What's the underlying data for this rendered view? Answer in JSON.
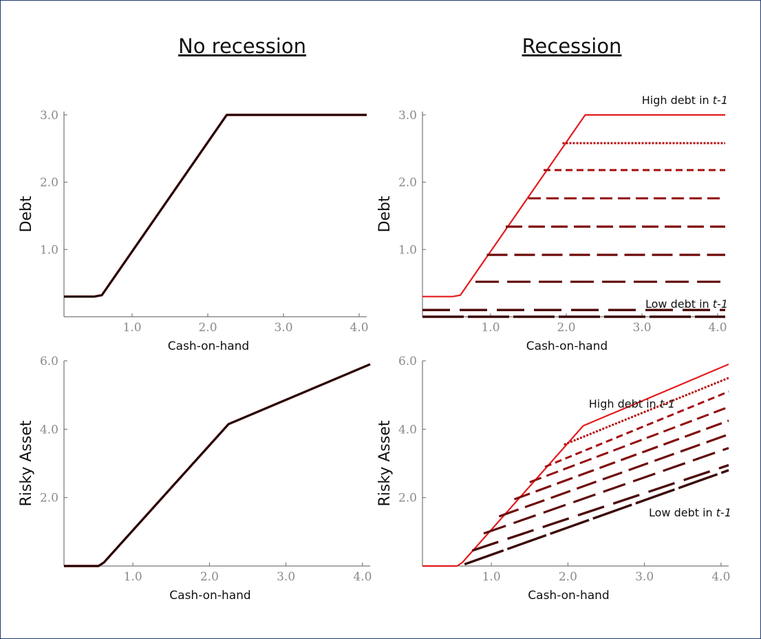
{
  "titles": {
    "left": "No recession",
    "right": "Recession"
  },
  "annotations": {
    "high_prefix": "High debt in ",
    "high_var": "t-1",
    "low_prefix": "Low debt in ",
    "low_var": "t-1"
  },
  "colors": {
    "frame": "#1f3b6e",
    "high_debt": "#e41a1c",
    "low_debt": "#3a0606",
    "dark": "#5a0a0a"
  },
  "chart_data": [
    {
      "id": "debt-no-recession",
      "type": "line",
      "title": "No recession",
      "xlabel": "Cash-on-hand",
      "ylabel": "Debt",
      "xlim": [
        0.1,
        4.1
      ],
      "ylim": [
        0,
        3.05
      ],
      "xticks": [
        "1.0",
        "2.0",
        "3.0",
        "4.0"
      ],
      "yticks": [
        "1.0",
        "2.0",
        "3.0"
      ],
      "xtick_values": [
        1,
        2,
        3,
        4
      ],
      "ytick_values": [
        1,
        2,
        3
      ],
      "series": [
        {
          "x": [
            0.1,
            0.5,
            0.6,
            2.25,
            4.1
          ],
          "y": [
            0.3,
            0.3,
            0.32,
            3.0,
            3.0
          ]
        }
      ]
    },
    {
      "id": "debt-recession",
      "type": "line",
      "title": "Recession",
      "xlabel": "Cash-on-hand",
      "ylabel": "Debt",
      "xlim": [
        0.1,
        4.1
      ],
      "ylim": [
        0,
        3.05
      ],
      "xticks": [
        "1.0",
        "2.0",
        "3.0",
        "4.0"
      ],
      "yticks": [
        "1.0",
        "2.0",
        "3.0"
      ],
      "xtick_values": [
        1,
        2,
        3,
        4
      ],
      "ytick_values": [
        1,
        2,
        3
      ],
      "series": [
        {
          "x": [
            0.1,
            0.5,
            0.6,
            2.25,
            4.1
          ],
          "y": [
            0.3,
            0.3,
            0.32,
            3.0,
            3.0
          ]
        },
        {
          "x": [
            1.95,
            4.1
          ],
          "y": [
            2.58,
            2.58
          ]
        },
        {
          "x": [
            1.7,
            4.1
          ],
          "y": [
            2.18,
            2.18
          ]
        },
        {
          "x": [
            1.5,
            4.1
          ],
          "y": [
            1.76,
            1.76
          ]
        },
        {
          "x": [
            1.2,
            4.1
          ],
          "y": [
            1.34,
            1.34
          ]
        },
        {
          "x": [
            0.95,
            4.1
          ],
          "y": [
            0.92,
            0.92
          ]
        },
        {
          "x": [
            0.8,
            4.1
          ],
          "y": [
            0.52,
            0.52
          ]
        },
        {
          "x": [
            0.1,
            4.1
          ],
          "y": [
            0.1,
            0.1
          ]
        },
        {
          "x": [
            0.1,
            4.1
          ],
          "y": [
            0.0,
            0.0
          ]
        }
      ]
    },
    {
      "id": "risky-no-recession",
      "type": "line",
      "xlabel": "Cash-on-hand",
      "ylabel": "Risky Asset",
      "xlim": [
        0.1,
        4.1
      ],
      "ylim": [
        0,
        6.0
      ],
      "xticks": [
        "1.0",
        "2.0",
        "3.0",
        "4.0"
      ],
      "yticks": [
        "2.0",
        "4.0",
        "6.0"
      ],
      "xtick_values": [
        1,
        2,
        3,
        4
      ],
      "ytick_values": [
        2,
        4,
        6
      ],
      "series": [
        {
          "x": [
            0.1,
            0.55,
            0.62,
            2.25,
            4.1
          ],
          "y": [
            0.0,
            0.0,
            0.1,
            4.15,
            5.9
          ]
        }
      ]
    },
    {
      "id": "risky-recession",
      "type": "line",
      "xlabel": "Cash-on-hand",
      "ylabel": "Risky Asset",
      "xlim": [
        0.1,
        4.1
      ],
      "ylim": [
        0,
        6.0
      ],
      "xticks": [
        "1.0",
        "2.0",
        "3.0",
        "4.0"
      ],
      "yticks": [
        "2.0",
        "4.0",
        "6.0"
      ],
      "xtick_values": [
        1,
        2,
        3,
        4
      ],
      "ytick_values": [
        2,
        4,
        6
      ],
      "series": [
        {
          "x": [
            0.1,
            0.55,
            0.62,
            2.2,
            4.1
          ],
          "y": [
            0.0,
            0.0,
            0.1,
            4.1,
            5.9
          ]
        },
        {
          "x": [
            1.95,
            4.1
          ],
          "y": [
            3.55,
            5.5
          ]
        },
        {
          "x": [
            1.7,
            4.1
          ],
          "y": [
            2.9,
            5.1
          ]
        },
        {
          "x": [
            1.5,
            4.1
          ],
          "y": [
            2.45,
            4.65
          ]
        },
        {
          "x": [
            1.3,
            4.1
          ],
          "y": [
            1.95,
            4.25
          ]
        },
        {
          "x": [
            1.1,
            4.1
          ],
          "y": [
            1.45,
            3.85
          ]
        },
        {
          "x": [
            0.9,
            4.1
          ],
          "y": [
            0.95,
            3.45
          ]
        },
        {
          "x": [
            0.75,
            4.1
          ],
          "y": [
            0.45,
            2.95
          ]
        },
        {
          "x": [
            0.65,
            4.1
          ],
          "y": [
            0.05,
            2.8
          ]
        }
      ]
    }
  ]
}
